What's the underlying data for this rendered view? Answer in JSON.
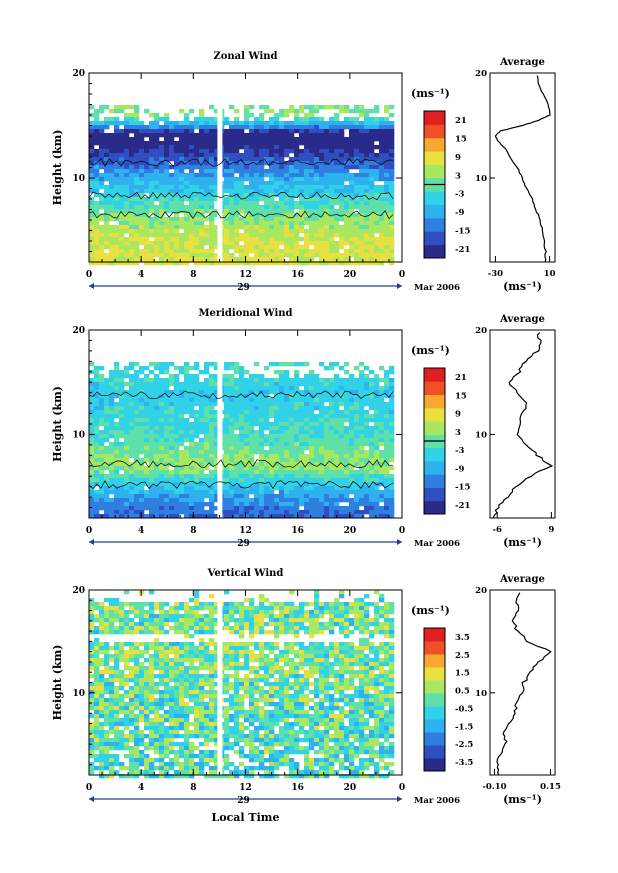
{
  "figure": {
    "x_axis_title": "Local Time",
    "y_axis_title": "Height (km)",
    "date_label": "Mar 2006",
    "day_label": "29",
    "x_ticks": [
      "0",
      "4",
      "8",
      "12",
      "16",
      "20",
      "0"
    ],
    "y_ticks": [
      "10",
      "20"
    ],
    "unit": "(ms⁻¹)"
  },
  "chart_data": [
    {
      "type": "heatmap",
      "title": "Zonal Wind",
      "xlabel": "",
      "ylabel": "Height (km)",
      "x_range_hours": [
        0,
        24
      ],
      "y_range_km": [
        2,
        20
      ],
      "colorbar": {
        "label": "(ms⁻¹)",
        "ticks": [
          "21",
          "15",
          "9",
          "3",
          "-3",
          "-9",
          "-15",
          "-21"
        ],
        "range": [
          -24,
          24
        ]
      },
      "colormap": [
        "#2a2a8a",
        "#2f4fc0",
        "#2f7fe0",
        "#2fb0ef",
        "#31d2e8",
        "#5fe0a8",
        "#a8e860",
        "#e8e040",
        "#f7a830",
        "#f05028",
        "#e02020"
      ],
      "profile_layers_km": [
        {
          "h": 2,
          "v": 8
        },
        {
          "h": 4,
          "v": 7
        },
        {
          "h": 6,
          "v": 3
        },
        {
          "h": 8,
          "v": -3
        },
        {
          "h": 10,
          "v": -9
        },
        {
          "h": 11,
          "v": -13
        },
        {
          "h": 12,
          "v": -18
        },
        {
          "h": 13,
          "v": -22
        },
        {
          "h": 14,
          "v": -28
        },
        {
          "h": 15,
          "v": -10
        },
        {
          "h": 16,
          "v": 2
        }
      ],
      "gap_hour": 10,
      "average": {
        "title": "Average",
        "xlabel": "(ms⁻¹)",
        "x_ticks": [
          "-30",
          "10"
        ],
        "y_ticks": [
          "10",
          "20"
        ],
        "x_range": [
          -34,
          14
        ],
        "h": [
          2,
          3,
          4,
          5,
          6,
          7,
          8,
          9,
          10,
          11,
          12,
          13,
          13.5,
          14,
          14.5,
          15,
          15.5,
          16,
          17,
          18,
          19,
          20
        ],
        "v": [
          7,
          7,
          6,
          5,
          3,
          0,
          -3,
          -7,
          -10,
          -14,
          -19,
          -24,
          -28,
          -30,
          -26,
          -10,
          2,
          10,
          9,
          5,
          2,
          0
        ]
      }
    },
    {
      "type": "heatmap",
      "title": "Meridional Wind",
      "xlabel": "",
      "ylabel": "Height (km)",
      "x_range_hours": [
        0,
        24
      ],
      "y_range_km": [
        2,
        20
      ],
      "colorbar": {
        "label": "(ms⁻¹)",
        "ticks": [
          "21",
          "15",
          "9",
          "3",
          "-3",
          "-9",
          "-15",
          "-21"
        ],
        "range": [
          -24,
          24
        ]
      },
      "colormap": [
        "#2a2a8a",
        "#2f4fc0",
        "#2f7fe0",
        "#2fb0ef",
        "#31d2e8",
        "#5fe0a8",
        "#a8e860",
        "#e8e040",
        "#f7a830",
        "#f05028",
        "#e02020"
      ],
      "profile_layers_km": [
        {
          "h": 2,
          "v": -16
        },
        {
          "h": 3,
          "v": -14
        },
        {
          "h": 4,
          "v": -10
        },
        {
          "h": 5,
          "v": -6
        },
        {
          "h": 6,
          "v": -2
        },
        {
          "h": 7,
          "v": 4
        },
        {
          "h": 8,
          "v": 2
        },
        {
          "h": 9,
          "v": 0
        },
        {
          "h": 10,
          "v": -2
        },
        {
          "h": 12,
          "v": -4
        },
        {
          "h": 14,
          "v": -5
        },
        {
          "h": 16,
          "v": -3
        }
      ],
      "gap_hour": 10,
      "average": {
        "title": "Average",
        "xlabel": "(ms⁻¹)",
        "x_ticks": [
          "-6",
          "9"
        ],
        "y_ticks": [
          "10",
          "20"
        ],
        "x_range": [
          -8,
          10
        ],
        "h": [
          2,
          3,
          4,
          5,
          6,
          7,
          8,
          9,
          10,
          11,
          12,
          13,
          14,
          15,
          16,
          17,
          18,
          19,
          20
        ],
        "v": [
          -7,
          -6,
          -3,
          -1,
          3,
          9,
          5,
          2,
          0,
          0,
          1,
          2,
          0,
          -3,
          0,
          2,
          5,
          6,
          5
        ]
      }
    },
    {
      "type": "heatmap",
      "title": "Vertical Wind",
      "xlabel": "Local Time",
      "ylabel": "Height (km)",
      "x_range_hours": [
        0,
        24
      ],
      "y_range_km": [
        2,
        20
      ],
      "colorbar": {
        "label": "(ms⁻¹)",
        "ticks": [
          "3.5",
          "2.5",
          "1.5",
          "0.5",
          "-0.5",
          "-1.5",
          "-2.5",
          "-3.5"
        ],
        "range": [
          -4,
          4
        ]
      },
      "colormap": [
        "#2a2a8a",
        "#2f4fc0",
        "#2f7fe0",
        "#2fb0ef",
        "#31d2e8",
        "#5fe0a8",
        "#a8e860",
        "#e8e040",
        "#f7a830",
        "#f05028",
        "#e02020"
      ],
      "profile_layers_km": [
        {
          "h": 2,
          "v": -0.3
        },
        {
          "h": 6,
          "v": -0.2
        },
        {
          "h": 10,
          "v": 0.0
        },
        {
          "h": 14,
          "v": 0.3
        },
        {
          "h": 18,
          "v": 0.1
        }
      ],
      "gap_hour": 10,
      "average": {
        "title": "Average",
        "xlabel": "(ms⁻¹)",
        "x_ticks": [
          "-0.10",
          "0.15"
        ],
        "y_ticks": [
          "10",
          "20"
        ],
        "x_range": [
          -0.12,
          0.17
        ],
        "h": [
          2,
          3,
          4,
          5,
          6,
          7,
          8,
          9,
          10,
          11,
          12,
          13,
          14,
          15,
          16,
          17,
          18,
          19,
          20
        ],
        "v": [
          -0.08,
          -0.09,
          -0.07,
          -0.05,
          -0.06,
          -0.03,
          -0.01,
          0.0,
          0.02,
          0.03,
          0.06,
          0.1,
          0.15,
          0.05,
          0.0,
          -0.02,
          0.01,
          0.0,
          0.02
        ]
      }
    }
  ]
}
